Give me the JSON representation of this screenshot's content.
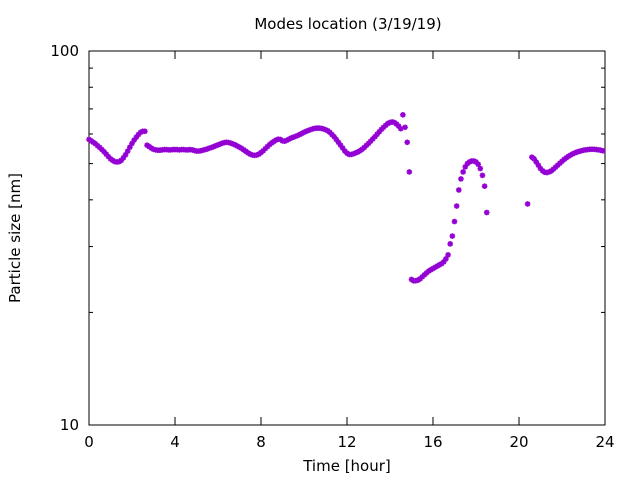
{
  "chart_data": {
    "type": "scatter",
    "title": "Modes location (3/19/19)",
    "xlabel": "Time [hour]",
    "ylabel": "Particle size [nm]",
    "xlim": [
      0,
      24
    ],
    "ylim": [
      10,
      100
    ],
    "y_scale": "log",
    "grid": false,
    "legend": "none",
    "marker": "asterisk",
    "marker_color": "#9400d3",
    "x_ticks": [
      0,
      4,
      8,
      12,
      16,
      20,
      24
    ],
    "x_tick_labels": [
      "0",
      "4",
      "8",
      "12",
      "16",
      "20",
      "24"
    ],
    "y_ticks": [
      10,
      100
    ],
    "y_tick_labels": [
      "10",
      "100"
    ],
    "series": [
      {
        "points": [
          [
            0.0,
            58.0
          ],
          [
            0.1,
            57.5
          ],
          [
            0.2,
            57.0
          ],
          [
            0.3,
            56.5
          ],
          [
            0.4,
            55.8
          ],
          [
            0.5,
            55.2
          ],
          [
            0.6,
            54.5
          ],
          [
            0.7,
            53.8
          ],
          [
            0.8,
            53.0
          ],
          [
            0.9,
            52.2
          ],
          [
            1.0,
            51.5
          ],
          [
            1.1,
            51.0
          ],
          [
            1.2,
            50.6
          ],
          [
            1.3,
            50.5
          ],
          [
            1.4,
            50.6
          ],
          [
            1.5,
            51.0
          ],
          [
            1.6,
            51.8
          ],
          [
            1.7,
            52.8
          ],
          [
            1.8,
            54.0
          ],
          [
            1.9,
            55.3
          ],
          [
            2.0,
            56.6
          ],
          [
            2.1,
            57.8
          ],
          [
            2.2,
            58.8
          ],
          [
            2.3,
            59.8
          ],
          [
            2.4,
            60.6
          ],
          [
            2.5,
            61.0
          ],
          [
            2.6,
            61.0
          ],
          [
            2.7,
            56.0
          ],
          [
            2.8,
            55.5
          ],
          [
            2.9,
            55.0
          ],
          [
            3.0,
            54.6
          ],
          [
            3.1,
            54.4
          ],
          [
            3.2,
            54.3
          ],
          [
            3.3,
            54.3
          ],
          [
            3.4,
            54.4
          ],
          [
            3.5,
            54.5
          ],
          [
            3.6,
            54.5
          ],
          [
            3.7,
            54.4
          ],
          [
            3.8,
            54.4
          ],
          [
            3.9,
            54.5
          ],
          [
            4.0,
            54.5
          ],
          [
            4.1,
            54.5
          ],
          [
            4.2,
            54.4
          ],
          [
            4.3,
            54.5
          ],
          [
            4.4,
            54.5
          ],
          [
            4.5,
            54.4
          ],
          [
            4.6,
            54.4
          ],
          [
            4.7,
            54.5
          ],
          [
            4.8,
            54.4
          ],
          [
            4.9,
            54.2
          ],
          [
            5.0,
            54.0
          ],
          [
            5.1,
            54.0
          ],
          [
            5.2,
            54.1
          ],
          [
            5.3,
            54.3
          ],
          [
            5.4,
            54.5
          ],
          [
            5.5,
            54.7
          ],
          [
            5.6,
            55.0
          ],
          [
            5.7,
            55.2
          ],
          [
            5.8,
            55.5
          ],
          [
            5.9,
            55.8
          ],
          [
            6.0,
            56.1
          ],
          [
            6.1,
            56.4
          ],
          [
            6.2,
            56.7
          ],
          [
            6.3,
            56.9
          ],
          [
            6.4,
            57.0
          ],
          [
            6.5,
            56.9
          ],
          [
            6.6,
            56.7
          ],
          [
            6.7,
            56.4
          ],
          [
            6.8,
            56.1
          ],
          [
            6.9,
            55.7
          ],
          [
            7.0,
            55.3
          ],
          [
            7.1,
            54.9
          ],
          [
            7.2,
            54.4
          ],
          [
            7.3,
            53.9
          ],
          [
            7.4,
            53.4
          ],
          [
            7.5,
            53.0
          ],
          [
            7.6,
            52.7
          ],
          [
            7.7,
            52.6
          ],
          [
            7.8,
            52.7
          ],
          [
            7.9,
            53.0
          ],
          [
            8.0,
            53.5
          ],
          [
            8.1,
            54.1
          ],
          [
            8.2,
            54.8
          ],
          [
            8.3,
            55.5
          ],
          [
            8.4,
            56.2
          ],
          [
            8.5,
            56.8
          ],
          [
            8.6,
            57.3
          ],
          [
            8.7,
            57.8
          ],
          [
            8.8,
            58.1
          ],
          [
            8.9,
            58.0
          ],
          [
            9.0,
            57.5
          ],
          [
            9.1,
            57.4
          ],
          [
            9.2,
            57.7
          ],
          [
            9.3,
            58.1
          ],
          [
            9.4,
            58.5
          ],
          [
            9.5,
            58.8
          ],
          [
            9.6,
            59.1
          ],
          [
            9.7,
            59.4
          ],
          [
            9.8,
            59.8
          ],
          [
            9.9,
            60.2
          ],
          [
            10.0,
            60.6
          ],
          [
            10.1,
            61.0
          ],
          [
            10.2,
            61.3
          ],
          [
            10.3,
            61.6
          ],
          [
            10.4,
            61.9
          ],
          [
            10.5,
            62.1
          ],
          [
            10.6,
            62.2
          ],
          [
            10.7,
            62.2
          ],
          [
            10.8,
            62.1
          ],
          [
            10.9,
            61.9
          ],
          [
            11.0,
            61.6
          ],
          [
            11.1,
            61.2
          ],
          [
            11.2,
            60.6
          ],
          [
            11.3,
            59.8
          ],
          [
            11.4,
            59.0
          ],
          [
            11.5,
            58.0
          ],
          [
            11.6,
            57.0
          ],
          [
            11.7,
            56.0
          ],
          [
            11.8,
            55.0
          ],
          [
            11.9,
            54.0
          ],
          [
            12.0,
            53.3
          ],
          [
            12.1,
            52.9
          ],
          [
            12.2,
            52.9
          ],
          [
            12.3,
            53.1
          ],
          [
            12.4,
            53.4
          ],
          [
            12.5,
            53.7
          ],
          [
            12.6,
            54.1
          ],
          [
            12.7,
            54.6
          ],
          [
            12.8,
            55.2
          ],
          [
            12.9,
            55.9
          ],
          [
            13.0,
            56.6
          ],
          [
            13.1,
            57.4
          ],
          [
            13.2,
            58.2
          ],
          [
            13.3,
            59.0
          ],
          [
            13.4,
            59.9
          ],
          [
            13.5,
            60.8
          ],
          [
            13.6,
            61.7
          ],
          [
            13.7,
            62.5
          ],
          [
            13.8,
            63.3
          ],
          [
            13.9,
            64.0
          ],
          [
            14.0,
            64.4
          ],
          [
            14.1,
            64.6
          ],
          [
            14.2,
            64.4
          ],
          [
            14.3,
            63.8
          ],
          [
            14.4,
            63.0
          ],
          [
            14.5,
            62.0
          ],
          [
            14.6,
            67.5
          ],
          [
            14.7,
            62.5
          ],
          [
            14.8,
            57.0
          ],
          [
            14.9,
            47.5
          ],
          [
            15.0,
            24.5
          ],
          [
            15.1,
            24.3
          ],
          [
            15.2,
            24.3
          ],
          [
            15.3,
            24.4
          ],
          [
            15.4,
            24.6
          ],
          [
            15.5,
            24.9
          ],
          [
            15.6,
            25.2
          ],
          [
            15.7,
            25.5
          ],
          [
            15.8,
            25.8
          ],
          [
            15.9,
            26.0
          ],
          [
            16.0,
            26.2
          ],
          [
            16.1,
            26.4
          ],
          [
            16.2,
            26.6
          ],
          [
            16.3,
            26.8
          ],
          [
            16.4,
            27.0
          ],
          [
            16.5,
            27.3
          ],
          [
            16.6,
            27.8
          ],
          [
            16.7,
            28.5
          ],
          [
            16.8,
            30.5
          ],
          [
            16.9,
            32.0
          ],
          [
            17.0,
            35.0
          ],
          [
            17.1,
            38.5
          ],
          [
            17.2,
            42.5
          ],
          [
            17.3,
            45.5
          ],
          [
            17.4,
            47.5
          ],
          [
            17.5,
            49.0
          ],
          [
            17.6,
            50.0
          ],
          [
            17.7,
            50.5
          ],
          [
            17.8,
            50.8
          ],
          [
            17.9,
            50.8
          ],
          [
            18.0,
            50.5
          ],
          [
            18.1,
            49.8
          ],
          [
            18.2,
            48.5
          ],
          [
            18.3,
            46.5
          ],
          [
            18.4,
            43.5
          ],
          [
            18.5,
            37.0
          ],
          [
            20.4,
            39.0
          ],
          [
            20.6,
            52.0
          ],
          [
            20.7,
            51.5
          ],
          [
            20.8,
            50.5
          ],
          [
            20.9,
            49.5
          ],
          [
            21.0,
            48.5
          ],
          [
            21.1,
            47.8
          ],
          [
            21.2,
            47.4
          ],
          [
            21.3,
            47.3
          ],
          [
            21.4,
            47.5
          ],
          [
            21.5,
            47.8
          ],
          [
            21.6,
            48.3
          ],
          [
            21.7,
            48.9
          ],
          [
            21.8,
            49.5
          ],
          [
            21.9,
            50.1
          ],
          [
            22.0,
            50.7
          ],
          [
            22.1,
            51.3
          ],
          [
            22.2,
            51.8
          ],
          [
            22.3,
            52.3
          ],
          [
            22.4,
            52.7
          ],
          [
            22.5,
            53.1
          ],
          [
            22.6,
            53.4
          ],
          [
            22.7,
            53.7
          ],
          [
            22.8,
            53.9
          ],
          [
            22.9,
            54.1
          ],
          [
            23.0,
            54.3
          ],
          [
            23.1,
            54.4
          ],
          [
            23.2,
            54.5
          ],
          [
            23.3,
            54.6
          ],
          [
            23.4,
            54.6
          ],
          [
            23.5,
            54.6
          ],
          [
            23.6,
            54.5
          ],
          [
            23.7,
            54.4
          ],
          [
            23.8,
            54.3
          ],
          [
            23.9,
            54.1
          ]
        ]
      }
    ]
  }
}
